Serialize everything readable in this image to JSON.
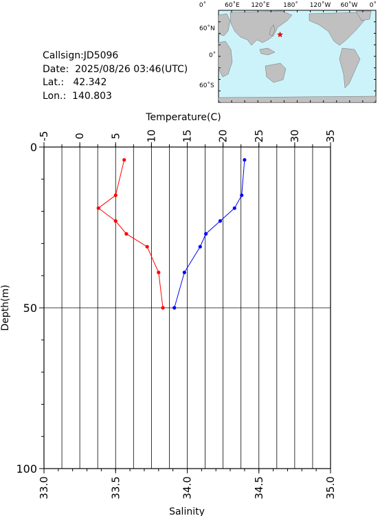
{
  "station": {
    "callsign": "Callsign:JD5096",
    "date": "Date:  2025/08/26 03:46(UTC)",
    "lat": "Lat.:   42.342",
    "lon": "Lon.:  140.803"
  },
  "map": {
    "lon_labels": [
      "0˚",
      "60˚E",
      "120˚E",
      "180˚",
      "120˚W",
      "60˚W",
      "0˚"
    ],
    "lat_labels": [
      "60˚N",
      "0˚",
      "60˚S"
    ],
    "colors": {
      "ocean": "#cdf3fa",
      "land": "#c0c0c0",
      "marker": "#ff0000"
    },
    "marker": {
      "lat": 42.342,
      "lon": 140.803
    }
  },
  "chart_data": {
    "type": "line",
    "top_axis": {
      "label": "Temperature(C)",
      "range": [
        -5,
        35
      ],
      "ticks": [
        "-5",
        "0",
        "5",
        "10",
        "15",
        "20",
        "25",
        "30",
        "35"
      ]
    },
    "bottom_axis": {
      "label": "Salinity",
      "range": [
        33.0,
        35.0
      ],
      "ticks": [
        "33.0",
        "33.5",
        "34.0",
        "34.5",
        "35.0"
      ]
    },
    "y_axis": {
      "label": "Depth(m)",
      "range": [
        0,
        100
      ],
      "inverted": true,
      "ticks": [
        "0",
        "50",
        "100"
      ]
    },
    "grid": true,
    "series": [
      {
        "axis": "temperature",
        "color": "#ff0000",
        "points": [
          {
            "x": 6.2,
            "depth": 4
          },
          {
            "x": 5.0,
            "depth": 15
          },
          {
            "x": 2.6,
            "depth": 19
          },
          {
            "x": 5.0,
            "depth": 23
          },
          {
            "x": 6.5,
            "depth": 27
          },
          {
            "x": 9.4,
            "depth": 31
          },
          {
            "x": 11.0,
            "depth": 39
          },
          {
            "x": 11.6,
            "depth": 50
          }
        ]
      },
      {
        "axis": "salinity",
        "color": "#0000ff",
        "points": [
          {
            "x": 34.4,
            "depth": 4
          },
          {
            "x": 34.38,
            "depth": 15
          },
          {
            "x": 34.33,
            "depth": 19
          },
          {
            "x": 34.23,
            "depth": 23
          },
          {
            "x": 34.13,
            "depth": 27
          },
          {
            "x": 34.09,
            "depth": 31
          },
          {
            "x": 33.98,
            "depth": 39
          },
          {
            "x": 33.91,
            "depth": 50
          }
        ]
      }
    ]
  }
}
